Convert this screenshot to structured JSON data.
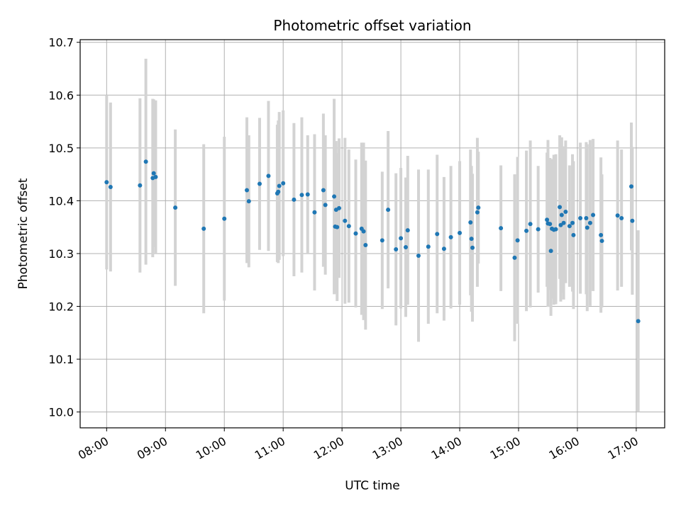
{
  "chart_data": {
    "type": "scatter",
    "title": "Photometric offset variation",
    "xlabel": "UTC time",
    "ylabel": "Photometric offset",
    "x_ticks": [
      "08:00",
      "09:00",
      "10:00",
      "11:00",
      "12:00",
      "13:00",
      "14:00",
      "15:00",
      "16:00",
      "17:00"
    ],
    "y_ticks": [
      "10.0",
      "10.1",
      "10.2",
      "10.3",
      "10.4",
      "10.5",
      "10.6",
      "10.7"
    ],
    "xlim": [
      "07:33",
      "17:29"
    ],
    "ylim": [
      9.97,
      10.705
    ],
    "grid": true,
    "colors": {
      "marker": "#1f77b4",
      "errorbar": "#d3d3d3",
      "grid": "#b0b0b0"
    },
    "x": [
      "08:00",
      "08:04",
      "08:34",
      "08:40",
      "08:47",
      "08:48",
      "08:50",
      "09:10",
      "09:39",
      "10:00",
      "10:23",
      "10:25",
      "10:36",
      "10:45",
      "10:54",
      "10:55",
      "10:56",
      "11:00",
      "11:11",
      "11:19",
      "11:25",
      "11:32",
      "11:41",
      "11:43",
      "11:52",
      "11:53",
      "11:54",
      "11:55",
      "11:57",
      "12:03",
      "12:07",
      "12:14",
      "12:20",
      "12:22",
      "12:24",
      "12:41",
      "12:47",
      "12:55",
      "13:00",
      "13:05",
      "13:07",
      "13:18",
      "13:28",
      "13:37",
      "13:44",
      "13:51",
      "14:00",
      "14:11",
      "14:12",
      "14:13",
      "14:18",
      "14:19",
      "14:42",
      "14:56",
      "14:59",
      "15:08",
      "15:12",
      "15:20",
      "15:29",
      "15:30",
      "15:32",
      "15:33",
      "15:34",
      "15:36",
      "15:38",
      "15:42",
      "15:43",
      "15:44",
      "15:46",
      "15:48",
      "15:52",
      "15:55",
      "15:56",
      "16:03",
      "16:09",
      "16:10",
      "16:13",
      "16:16",
      "16:24",
      "16:25",
      "16:41",
      "16:45",
      "16:55",
      "16:56",
      "17:02"
    ],
    "y": [
      10.435,
      10.426,
      10.429,
      10.474,
      10.443,
      10.452,
      10.445,
      10.387,
      10.347,
      10.366,
      10.42,
      10.399,
      10.432,
      10.447,
      10.414,
      10.417,
      10.428,
      10.433,
      10.402,
      10.411,
      10.412,
      10.378,
      10.42,
      10.392,
      10.408,
      10.351,
      10.383,
      10.35,
      10.386,
      10.362,
      10.352,
      10.338,
      10.347,
      10.342,
      10.316,
      10.325,
      10.383,
      10.308,
      10.329,
      10.312,
      10.344,
      10.296,
      10.313,
      10.337,
      10.309,
      10.331,
      10.339,
      10.359,
      10.328,
      10.311,
      10.378,
      10.387,
      10.348,
      10.292,
      10.325,
      10.343,
      10.356,
      10.346,
      10.364,
      10.357,
      10.356,
      10.305,
      10.347,
      10.345,
      10.346,
      10.388,
      10.354,
      10.373,
      10.358,
      10.379,
      10.352,
      10.358,
      10.335,
      10.367,
      10.367,
      10.349,
      10.358,
      10.373,
      10.335,
      10.324,
      10.372,
      10.367,
      10.427,
      10.362,
      10.172
    ],
    "err": [
      0.165,
      0.16,
      0.165,
      0.195,
      0.15,
      0.14,
      0.145,
      0.148,
      0.16,
      0.155,
      0.138,
      0.125,
      0.125,
      0.142,
      0.13,
      0.135,
      0.14,
      0.138,
      0.145,
      0.147,
      0.112,
      0.148,
      0.145,
      0.132,
      0.185,
      0.127,
      0.13,
      0.14,
      0.132,
      0.157,
      0.145,
      0.14,
      0.163,
      0.168,
      0.16,
      0.13,
      0.149,
      0.144,
      0.133,
      0.132,
      0.141,
      0.163,
      0.146,
      0.15,
      0.136,
      0.135,
      0.136,
      0.138,
      0.138,
      0.14,
      0.141,
      0.106,
      0.119,
      0.158,
      0.158,
      0.152,
      0.158,
      0.12,
      0.127,
      0.158,
      0.125,
      0.123,
      0.132,
      0.142,
      0.142,
      0.136,
      0.145,
      0.147,
      0.145,
      0.135,
      0.115,
      0.13,
      0.14,
      0.143,
      0.144,
      0.158,
      0.157,
      0.144,
      0.147,
      0.126,
      0.142,
      0.13,
      0.121,
      0.14,
      0.172
    ]
  }
}
